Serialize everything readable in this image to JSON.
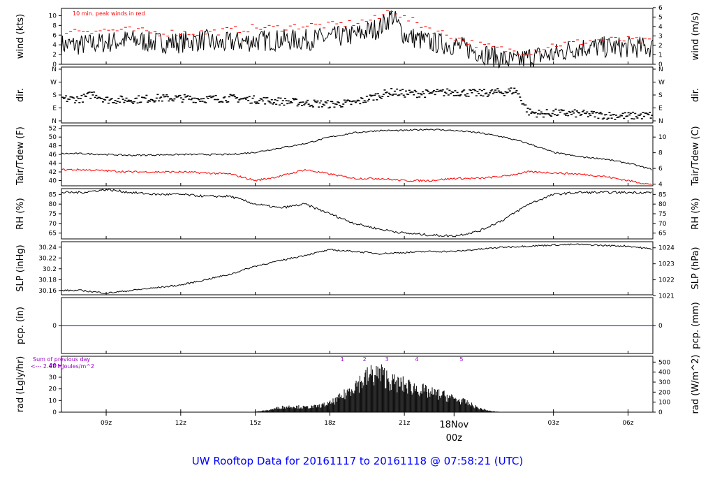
{
  "title": "UW Rooftop Data for 20161117  to  20161118 @ 07:58:21  (UTC)",
  "date_marker": {
    "day": "18Nov",
    "hour": "00z",
    "hours_offset": 15
  },
  "colors": {
    "title": "#0000ff",
    "peak": "#ff0000",
    "dew": "#ff0000",
    "pcp": "#0000ff",
    "note": "#9900cc",
    "date": "#ff0000"
  },
  "chart_data": [
    {
      "id": "wind",
      "type": "line",
      "left_label": "wind (kts)",
      "right_label": "wind (m/s)",
      "annotation": "10 min. peak winds in red",
      "left_ticks": [
        0,
        2,
        4,
        6,
        8,
        10
      ],
      "right_ticks": [
        0,
        1,
        2,
        3,
        4,
        5,
        6
      ],
      "ylim": [
        0,
        11.5
      ],
      "series": [
        {
          "name": "wind",
          "x": [
            0,
            1,
            2,
            3,
            4,
            5,
            5.5,
            6,
            7,
            8,
            9,
            10,
            11,
            12,
            12.5,
            13,
            14,
            15,
            16,
            17,
            17.5,
            18,
            19,
            20,
            21,
            22,
            23
          ],
          "y": [
            4,
            4.5,
            5,
            4.5,
            4.5,
            5,
            4,
            4.5,
            4.8,
            5,
            5,
            5.5,
            6,
            7.5,
            10,
            6,
            4.5,
            4,
            2.5,
            1,
            0.5,
            1.5,
            2,
            3.5,
            3.5,
            3.5,
            3.5
          ]
        },
        {
          "name": "10 min. peak winds",
          "x": [
            0,
            1,
            2,
            3,
            4,
            5,
            6,
            7,
            8,
            9,
            10,
            11,
            12,
            12.5,
            13,
            14,
            15,
            16,
            17,
            18,
            19,
            20,
            21,
            22,
            23
          ],
          "y": [
            7,
            7,
            7,
            6.5,
            6.5,
            6.5,
            7,
            7.5,
            7.5,
            8,
            8,
            8.5,
            9.5,
            11.5,
            9.5,
            7.5,
            5.5,
            4,
            3,
            2.5,
            4,
            4.5,
            5,
            5,
            4.5
          ]
        }
      ]
    },
    {
      "id": "dir",
      "type": "scatter",
      "left_label": "dir.",
      "right_label": "dir.",
      "left_ticks": [
        "N",
        "E",
        "S",
        "W",
        "N"
      ],
      "right_ticks": [
        "N",
        "E",
        "S",
        "W",
        "N"
      ],
      "ylim": [
        0,
        360
      ],
      "x": [
        0,
        0.5,
        1,
        2,
        3,
        4,
        5,
        6,
        7,
        8,
        9,
        10,
        11,
        12,
        12.5,
        13,
        14,
        15,
        16,
        17,
        17.5,
        18,
        18.5,
        19,
        20,
        21,
        22,
        23
      ],
      "y": [
        155,
        190,
        150,
        150,
        160,
        160,
        155,
        160,
        150,
        140,
        130,
        120,
        130,
        180,
        200,
        190,
        190,
        200,
        190,
        200,
        210,
        70,
        60,
        65,
        60,
        50,
        45,
        50
      ]
    },
    {
      "id": "temp",
      "type": "line",
      "left_label": "Tair/Tdew (F)",
      "right_label": "Tair/Tdew (C)",
      "left_ticks": [
        40,
        42,
        44,
        46,
        48,
        50,
        52
      ],
      "right_ticks": [
        4,
        6,
        8,
        10
      ],
      "ylim": [
        38.8,
        52.6
      ],
      "series": [
        {
          "name": "Tair",
          "x": [
            0,
            2,
            4,
            6,
            7,
            8,
            9,
            10,
            11,
            12,
            13,
            14,
            15,
            16,
            17,
            18,
            19,
            20,
            21,
            22,
            23
          ],
          "y": [
            46.2,
            45.8,
            46,
            46,
            46.5,
            47.5,
            48.5,
            50,
            51,
            51.5,
            51.5,
            51.8,
            51.5,
            51,
            50,
            48.5,
            46.5,
            45.5,
            45,
            44,
            42.5
          ]
        },
        {
          "name": "Tdew",
          "x": [
            0,
            2,
            4,
            6,
            7,
            8,
            9,
            10,
            11,
            12,
            13,
            14,
            15,
            16,
            17,
            18,
            19,
            20,
            21,
            22,
            23
          ],
          "y": [
            42.5,
            42,
            42,
            41.5,
            40,
            41,
            42.5,
            41.5,
            40.5,
            40.5,
            40,
            40,
            40.5,
            40.5,
            41,
            42,
            41.8,
            41.5,
            41,
            40,
            39
          ]
        }
      ]
    },
    {
      "id": "rh",
      "type": "line",
      "left_label": "RH (%)",
      "right_label": "RH (%)",
      "left_ticks": [
        65,
        70,
        75,
        80,
        85
      ],
      "right_ticks": [
        65,
        70,
        75,
        80,
        85
      ],
      "ylim": [
        62,
        88
      ],
      "series": [
        {
          "name": "RH",
          "x": [
            0,
            1,
            2,
            3,
            4,
            5,
            6,
            7,
            8,
            9,
            10,
            11,
            12,
            13,
            14,
            15,
            16,
            17,
            18,
            19,
            20,
            21,
            22,
            23
          ],
          "y": [
            86,
            87.5,
            86,
            85,
            85,
            84,
            84,
            80,
            78,
            80,
            75,
            70,
            67,
            65,
            64,
            63.5,
            66,
            72,
            80,
            85,
            86,
            86,
            86,
            86
          ]
        }
      ]
    },
    {
      "id": "slp",
      "type": "line",
      "left_label": "SLP (inHg)",
      "right_label": "SLP (hPa)",
      "left_ticks": [
        30.16,
        30.18,
        30.2,
        30.22,
        30.24
      ],
      "right_ticks": [
        1021,
        1022,
        1023,
        1024
      ],
      "ylim": [
        30.152,
        30.25
      ],
      "series": [
        {
          "name": "SLP",
          "x": [
            0,
            1,
            2,
            3,
            4,
            5,
            6,
            7,
            8,
            9,
            10,
            11,
            12,
            13,
            14,
            15,
            16,
            17,
            18,
            19,
            20,
            21,
            22,
            23
          ],
          "y": [
            30.16,
            30.155,
            30.16,
            30.165,
            30.17,
            30.18,
            30.19,
            30.205,
            30.215,
            30.225,
            30.235,
            30.232,
            30.228,
            30.23,
            30.232,
            30.232,
            30.236,
            30.24,
            30.242,
            30.244,
            30.245,
            30.243,
            30.242,
            30.236
          ]
        }
      ]
    },
    {
      "id": "pcp",
      "type": "line",
      "left_label": "pcp. (in)",
      "right_label": "pcp. (mm)",
      "left_ticks": [
        0
      ],
      "right_ticks": [
        0
      ],
      "ylim": [
        -1,
        1
      ],
      "series": [
        {
          "name": "pcp",
          "x": [
            0,
            23
          ],
          "y": [
            0,
            0
          ]
        }
      ]
    },
    {
      "id": "rad",
      "type": "area",
      "left_label": "rad (Lgly/hr)",
      "right_label": "rad (W/m^2)",
      "annotation_1": "Sum of previous day",
      "annotation_2": "<--- 2.47 MJoules/m^2",
      "left_ticks": [
        0,
        10,
        20,
        30,
        40
      ],
      "right_ticks": [
        0,
        100,
        200,
        300,
        400,
        500
      ],
      "top_labels": [
        "1",
        "2",
        "3",
        "4",
        "5"
      ],
      "top_label_x": [
        10.5,
        11.4,
        12.3,
        13.5,
        15.3
      ],
      "ylim": [
        0,
        48
      ],
      "x": [
        6.5,
        7,
        7.5,
        8,
        8.5,
        9,
        9.5,
        10,
        10.5,
        11,
        11.3,
        11.6,
        12,
        12.3,
        12.6,
        13,
        13.3,
        13.6,
        14,
        14.5,
        15,
        15.5,
        16,
        16.5,
        17
      ],
      "y": [
        0,
        0.5,
        2,
        5,
        6,
        5,
        6,
        9,
        16,
        28,
        32,
        38,
        40,
        35,
        30,
        28,
        26,
        24,
        20,
        18,
        14,
        10,
        4,
        1,
        0
      ]
    }
  ],
  "x_axis": {
    "ticks": [
      "09z",
      "12z",
      "15z",
      "18z",
      "21z",
      "03z",
      "06z"
    ],
    "tick_hours": [
      1,
      4,
      7,
      10,
      13,
      19,
      22
    ],
    "range_hours": [
      -0.8,
      23
    ]
  }
}
